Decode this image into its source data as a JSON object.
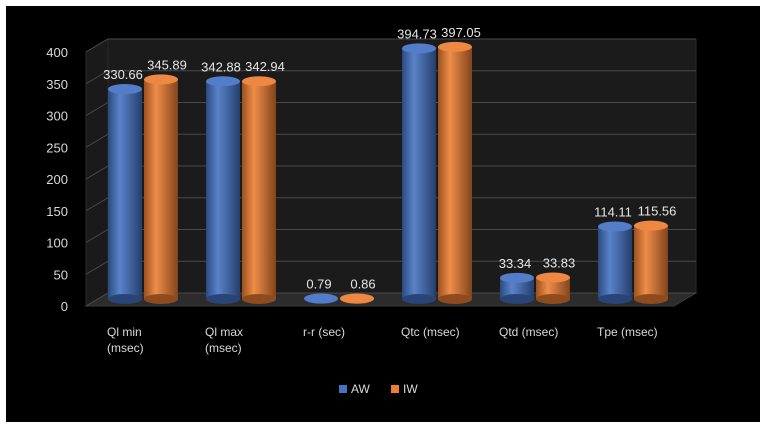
{
  "chart_data": {
    "type": "bar",
    "style": "3d-cylinder",
    "categories": [
      [
        "Ql min",
        "(msec)"
      ],
      [
        "Ql max",
        "(msec)"
      ],
      [
        "r-r (sec)"
      ],
      [
        "Qtc (msec)"
      ],
      [
        "Qtd (msec)"
      ],
      [
        "Tpe (msec)"
      ]
    ],
    "series": [
      {
        "name": "AW",
        "color": "#4472c4",
        "values": [
          330.66,
          342.88,
          0.79,
          394.73,
          33.34,
          114.11
        ],
        "labels": [
          "330.66",
          "342.88",
          "0.79",
          "394.73",
          "33.34",
          "114.11"
        ]
      },
      {
        "name": "IW",
        "color": "#ed7d31",
        "values": [
          345.89,
          342.94,
          0.86,
          397.05,
          33.83,
          115.56
        ],
        "labels": [
          "345.89",
          "342.94",
          "0.86",
          "397.05",
          "33.83",
          "115.56"
        ]
      }
    ],
    "yticks": [
      "0",
      "50",
      "100",
      "150",
      "200",
      "250",
      "300",
      "350",
      "400"
    ],
    "ylim": [
      0,
      400
    ],
    "grid": true,
    "legend_position": "bottom",
    "background": "#000000"
  }
}
